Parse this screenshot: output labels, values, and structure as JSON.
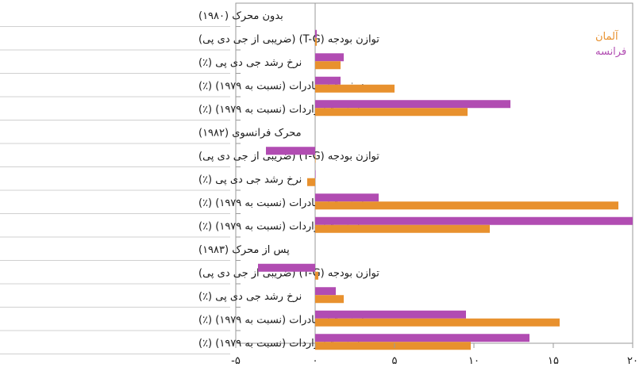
{
  "chart_data": {
    "type": "bar",
    "orientation": "horizontal",
    "xlim": [
      -5,
      20
    ],
    "x_ticks": [
      -5,
      0,
      5,
      10,
      15,
      20
    ],
    "x_tick_labels": [
      "-۵",
      "۰",
      "۵",
      "۱۰",
      "۱۵",
      "۲۰"
    ],
    "grid": false,
    "legend_position": "top-right",
    "series": [
      {
        "name": "آلمان",
        "color": "#e8912e"
      },
      {
        "name": "فرانسه",
        "color": "#b14cb2"
      }
    ],
    "groups": [
      {
        "title": "بدون محرک (۱۹۸۰)",
        "rows": [
          {
            "label": "توازن بودجه (T-G) (ضریبی از جی دی پی)",
            "values": [
              0.1,
              0.1
            ]
          },
          {
            "label": "نرخ رشد جی دی پی (٪)",
            "values": [
              1.6,
              1.8
            ]
          },
          {
            "label": "نرخ رشد صادرات (نسبت به ۱۹۷۹) (٪)",
            "values": [
              5.0,
              1.6
            ]
          },
          {
            "label": "نرخ رشد واردات (نسبت به ۱۹۷۹) (٪)",
            "values": [
              9.6,
              12.3
            ]
          }
        ]
      },
      {
        "title": "محرک فرانسوی (۱۹۸۲)",
        "rows": [
          {
            "label": "توازن بودجه (T-G) (ضریبی از جی دی پی)",
            "values": [
              0.0,
              -3.1
            ]
          },
          {
            "label": "نرخ رشد جی دی پی (٪)",
            "values": [
              -0.5,
              0.0
            ]
          },
          {
            "label": "نرخ رشد صادرات (نسبت به ۱۹۷۹) (٪)",
            "values": [
              19.1,
              4.0
            ]
          },
          {
            "label": "نرخ رشد واردات (نسبت به ۱۹۷۹) (٪)",
            "values": [
              11.0,
              20.0
            ]
          }
        ]
      },
      {
        "title": "پس از محرک (۱۹۸۳)",
        "rows": [
          {
            "label": "توازن بودجه (T-G) (ضریبی از جی دی پی)",
            "values": [
              0.2,
              -3.6
            ]
          },
          {
            "label": "نرخ رشد جی دی پی (٪)",
            "values": [
              1.8,
              1.3
            ]
          },
          {
            "label": "نرخ رشد صادرات (نسبت به ۱۹۷۹) (٪)",
            "values": [
              15.4,
              9.5
            ]
          },
          {
            "label": "نرخ رشد واردات (نسبت به ۱۹۷۹) (٪)",
            "values": [
              9.8,
              13.5
            ]
          }
        ]
      }
    ]
  }
}
